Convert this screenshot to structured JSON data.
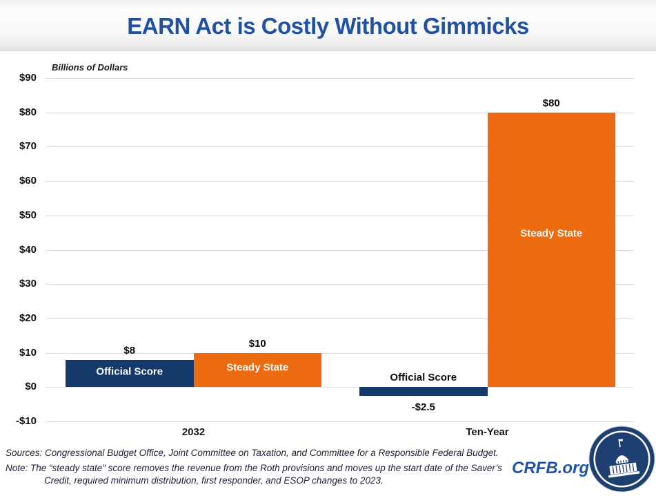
{
  "header": {
    "title": "EARN Act is Costly Without Gimmicks"
  },
  "chart_data": {
    "type": "bar",
    "title": "EARN Act is Costly Without Gimmicks",
    "xlabel": "",
    "ylabel": "Billions of Dollars",
    "ylim": [
      -10,
      90
    ],
    "grid": true,
    "legend_position": "labels inside bars",
    "yticks": {
      "values": [
        90,
        80,
        70,
        60,
        50,
        40,
        30,
        20,
        10,
        0,
        -10
      ],
      "labels": [
        "$90",
        "$80",
        "$70",
        "$60",
        "$50",
        "$40",
        "$30",
        "$20",
        "$10",
        "$0",
        "-$10"
      ]
    },
    "categories": [
      "2032",
      "Ten-Year"
    ],
    "series": [
      {
        "name": "Official Score",
        "color": "#15396B",
        "values": [
          8,
          -2.5
        ],
        "value_labels": [
          "$8",
          "-$2.5"
        ]
      },
      {
        "name": "Steady State",
        "color": "#EC6B0F",
        "values": [
          10,
          80
        ],
        "value_labels": [
          "$10",
          "$80"
        ]
      }
    ]
  },
  "footer": {
    "sources": "Sources: Congressional Budget Office, Joint Committee on Taxation, and Committee for a Responsible Federal Budget.",
    "note": "Note: The “steady state” score removes the revenue from the Roth provisions and moves up the start date of the Saver’s Credit, required minimum distribution, first responder, and ESOP changes to 2023.",
    "brand": "CRFB.org"
  },
  "colors": {
    "title_blue": "#2151A3",
    "navy_bar": "#15396B",
    "orange_bar": "#EC6B0F",
    "brand_blue": "#2153A8",
    "gridline_gray": "#D9D9D9"
  }
}
